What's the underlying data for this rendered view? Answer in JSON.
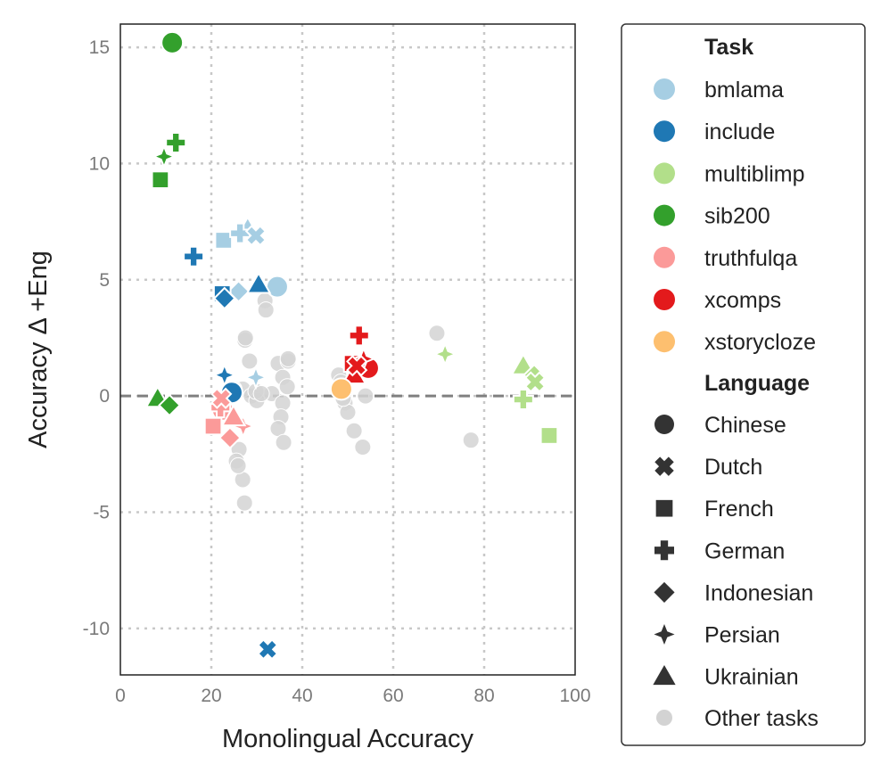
{
  "chart_data": {
    "type": "scatter",
    "xlabel": "Monolingual Accuracy",
    "ylabel": "Accuracy Δ +Eng",
    "xlim": [
      0,
      100
    ],
    "ylim": [
      -12,
      16
    ],
    "xticks": [
      0,
      20,
      40,
      60,
      80,
      100
    ],
    "yticks": [
      15,
      10,
      5,
      0,
      -5,
      -10
    ],
    "grid": "dotted",
    "reference_line": {
      "y": 0,
      "style": "dashed"
    },
    "legend_placement": "right",
    "legend": {
      "task_title": "Task",
      "tasks": [
        {
          "name": "bmlama",
          "color": "#a6cee3"
        },
        {
          "name": "include",
          "color": "#1f78b4"
        },
        {
          "name": "multiblimp",
          "color": "#b2df8a"
        },
        {
          "name": "sib200",
          "color": "#33a02c"
        },
        {
          "name": "truthfulqa",
          "color": "#fb9a99"
        },
        {
          "name": "xcomps",
          "color": "#e31a1c"
        },
        {
          "name": "xstorycloze",
          "color": "#fdbf6f"
        }
      ],
      "language_title": "Language",
      "languages": [
        {
          "name": "Chinese",
          "marker": "circle"
        },
        {
          "name": "Dutch",
          "marker": "x"
        },
        {
          "name": "French",
          "marker": "square"
        },
        {
          "name": "German",
          "marker": "plus"
        },
        {
          "name": "Indonesian",
          "marker": "diamond"
        },
        {
          "name": "Persian",
          "marker": "star4"
        },
        {
          "name": "Ukrainian",
          "marker": "triangle"
        }
      ],
      "other_label": "Other tasks",
      "other_color": "#d3d3d3"
    },
    "other_points": [
      [
        27.4,
        2.4
      ],
      [
        28.4,
        1.5
      ],
      [
        34.7,
        1.4
      ],
      [
        36.9,
        1.5
      ],
      [
        35.7,
        0.8
      ],
      [
        36.7,
        0.4
      ],
      [
        26.9,
        0.3
      ],
      [
        28.8,
        0.0
      ],
      [
        30.0,
        -0.2
      ],
      [
        33.3,
        0.1
      ],
      [
        35.7,
        -0.3
      ],
      [
        35.3,
        -0.9
      ],
      [
        34.7,
        -1.4
      ],
      [
        35.9,
        -2.0
      ],
      [
        26.1,
        -2.3
      ],
      [
        25.5,
        -2.8
      ],
      [
        26.9,
        -3.6
      ],
      [
        27.3,
        -4.6
      ],
      [
        25.9,
        -3.0
      ],
      [
        29.8,
        0.2
      ],
      [
        31.8,
        4.1
      ],
      [
        32.0,
        3.7
      ],
      [
        27.5,
        2.5
      ],
      [
        36.9,
        1.6
      ],
      [
        31.0,
        0.1
      ],
      [
        25.0,
        0.3
      ],
      [
        69.6,
        2.7
      ],
      [
        77.1,
        -1.9
      ],
      [
        48.0,
        0.9
      ],
      [
        53.9,
        0.0
      ],
      [
        49.4,
        -0.3
      ],
      [
        50.0,
        -0.7
      ],
      [
        51.4,
        -1.5
      ],
      [
        53.3,
        -2.2
      ],
      [
        49.0,
        -0.1
      ],
      [
        48.5,
        0.6
      ]
    ],
    "points": [
      {
        "task": "sib200",
        "language": "Chinese",
        "x": 11.4,
        "y": 15.2
      },
      {
        "task": "sib200",
        "language": "German",
        "x": 12.2,
        "y": 10.9
      },
      {
        "task": "sib200",
        "language": "Persian",
        "x": 9.6,
        "y": 10.3
      },
      {
        "task": "sib200",
        "language": "French",
        "x": 8.8,
        "y": 9.3
      },
      {
        "task": "sib200",
        "language": "Ukrainian",
        "x": 8.2,
        "y": -0.1
      },
      {
        "task": "sib200",
        "language": "Indonesian",
        "x": 10.8,
        "y": -0.4
      },
      {
        "task": "bmlama",
        "language": "French",
        "x": 22.7,
        "y": 6.7
      },
      {
        "task": "bmlama",
        "language": "Ukrainian",
        "x": 28.0,
        "y": 7.2
      },
      {
        "task": "bmlama",
        "language": "German",
        "x": 26.3,
        "y": 7.0
      },
      {
        "task": "bmlama",
        "language": "Dutch",
        "x": 29.8,
        "y": 6.9
      },
      {
        "task": "bmlama",
        "language": "Indonesian",
        "x": 26.0,
        "y": 4.5
      },
      {
        "task": "bmlama",
        "language": "Chinese",
        "x": 34.5,
        "y": 4.7
      },
      {
        "task": "bmlama",
        "language": "Persian",
        "x": 29.8,
        "y": 0.8
      },
      {
        "task": "include",
        "language": "German",
        "x": 16.1,
        "y": 6.0
      },
      {
        "task": "include",
        "language": "French",
        "x": 22.4,
        "y": 4.4
      },
      {
        "task": "include",
        "language": "Indonesian",
        "x": 22.9,
        "y": 4.2
      },
      {
        "task": "include",
        "language": "Ukrainian",
        "x": 30.4,
        "y": 4.8
      },
      {
        "task": "include",
        "language": "Persian",
        "x": 22.9,
        "y": 0.9
      },
      {
        "task": "include",
        "language": "Chinese",
        "x": 24.5,
        "y": 0.15
      },
      {
        "task": "include",
        "language": "Dutch",
        "x": 32.4,
        "y": -10.9
      },
      {
        "task": "truthfulqa",
        "language": "Chinese",
        "x": 22.5,
        "y": -0.6
      },
      {
        "task": "truthfulqa",
        "language": "German",
        "x": 22.0,
        "y": -0.5
      },
      {
        "task": "truthfulqa",
        "language": "Dutch",
        "x": 22.2,
        "y": -0.1
      },
      {
        "task": "truthfulqa",
        "language": "French",
        "x": 20.4,
        "y": -1.3
      },
      {
        "task": "truthfulqa",
        "language": "Persian",
        "x": 27.0,
        "y": -1.3
      },
      {
        "task": "truthfulqa",
        "language": "Ukrainian",
        "x": 24.9,
        "y": -0.9
      },
      {
        "task": "truthfulqa",
        "language": "Indonesian",
        "x": 24.1,
        "y": -1.8
      },
      {
        "task": "xcomps",
        "language": "German",
        "x": 52.5,
        "y": 2.6
      },
      {
        "task": "xcomps",
        "language": "French",
        "x": 51.0,
        "y": 1.4
      },
      {
        "task": "xcomps",
        "language": "Ukrainian",
        "x": 51.4,
        "y": 0.9
      },
      {
        "task": "xcomps",
        "language": "Chinese",
        "x": 54.5,
        "y": 1.2
      },
      {
        "task": "xcomps",
        "language": "Persian",
        "x": 53.5,
        "y": 1.6
      },
      {
        "task": "xcomps",
        "language": "Dutch",
        "x": 52.0,
        "y": 1.3
      },
      {
        "task": "xstorycloze",
        "language": "Chinese",
        "x": 48.6,
        "y": 0.3
      },
      {
        "task": "multiblimp",
        "language": "Persian",
        "x": 71.4,
        "y": 1.8
      },
      {
        "task": "multiblimp",
        "language": "Ukrainian",
        "x": 88.6,
        "y": 1.3
      },
      {
        "task": "multiblimp",
        "language": "Indonesian",
        "x": 91.0,
        "y": 0.9
      },
      {
        "task": "multiblimp",
        "language": "Dutch",
        "x": 91.2,
        "y": 0.6
      },
      {
        "task": "multiblimp",
        "language": "German",
        "x": 88.6,
        "y": -0.15
      },
      {
        "task": "multiblimp",
        "language": "French",
        "x": 94.3,
        "y": -1.7
      }
    ]
  }
}
